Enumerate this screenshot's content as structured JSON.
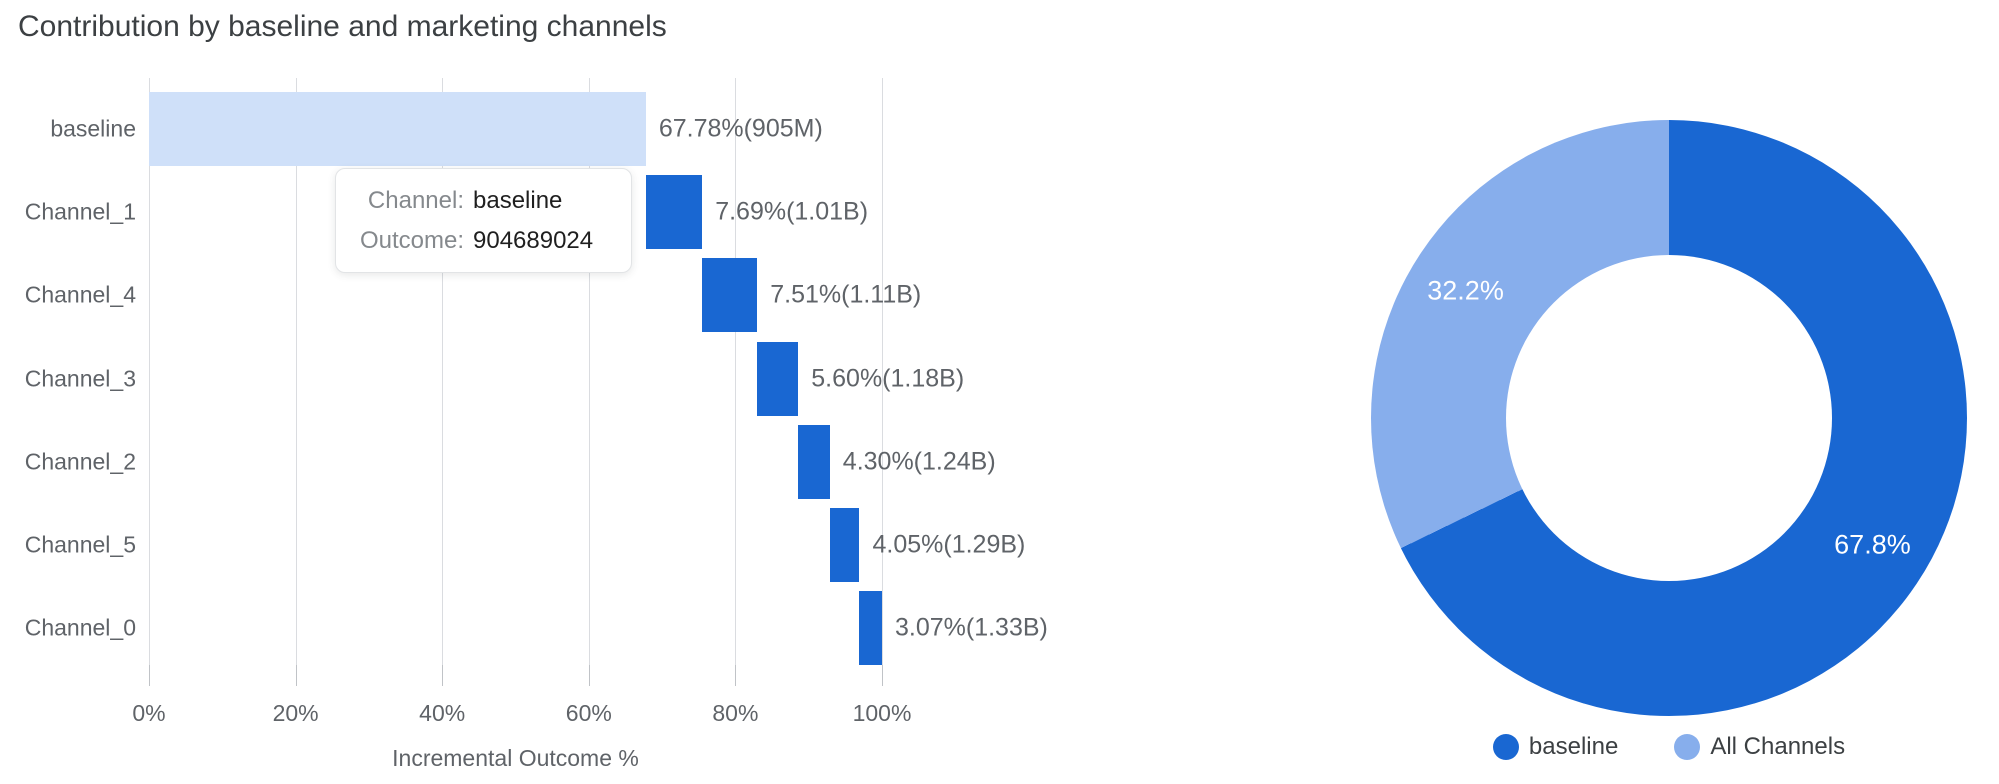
{
  "chart_data": [
    {
      "type": "bar",
      "subtype": "horizontal-waterfall",
      "title": "Contribution by baseline and marketing channels",
      "categories": [
        "baseline",
        "Channel_1",
        "Channel_4",
        "Channel_3",
        "Channel_2",
        "Channel_5",
        "Channel_0"
      ],
      "values": [
        67.78,
        7.69,
        7.51,
        5.6,
        4.3,
        4.05,
        3.07
      ],
      "bar_starts": [
        0,
        67.78,
        75.47,
        82.98,
        88.58,
        92.88,
        96.93
      ],
      "bar_labels": [
        "67.78%(905M)",
        "7.69%(1.01B)",
        "7.51%(1.11B)",
        "5.60%(1.18B)",
        "4.30%(1.24B)",
        "4.05%(1.29B)",
        "3.07%(1.33B)"
      ],
      "cumulative_outcomes": [
        "905M",
        "1.01B",
        "1.11B",
        "1.18B",
        "1.24B",
        "1.29B",
        "1.33B"
      ],
      "xlabel": "Incremental Outcome %",
      "ylabel": "",
      "xlim": [
        0,
        105
      ],
      "xticks": [
        0,
        20,
        40,
        60,
        80,
        100
      ],
      "xtick_labels": [
        "0%",
        "20%",
        "40%",
        "60%",
        "80%",
        "100%"
      ],
      "grid": "vertical",
      "bar_colors": {
        "baseline": "#cfe0f9",
        "channels": "#1967d2"
      },
      "tooltip": {
        "rows": [
          {
            "label": "Channel:",
            "value": "baseline"
          },
          {
            "label": "Outcome:",
            "value": "904689024"
          }
        ]
      }
    },
    {
      "type": "pie",
      "subtype": "donut",
      "labels": [
        "baseline",
        "All Channels"
      ],
      "values": [
        67.8,
        32.2
      ],
      "slice_labels": [
        "67.8%",
        "32.2%"
      ],
      "colors": [
        "#1967d2",
        "#87aeec"
      ],
      "slice_label_color": "#ffffff",
      "hole": 0.55,
      "start_angle_deg": 0,
      "direction": "clockwise",
      "legend_position": "bottom"
    }
  ]
}
